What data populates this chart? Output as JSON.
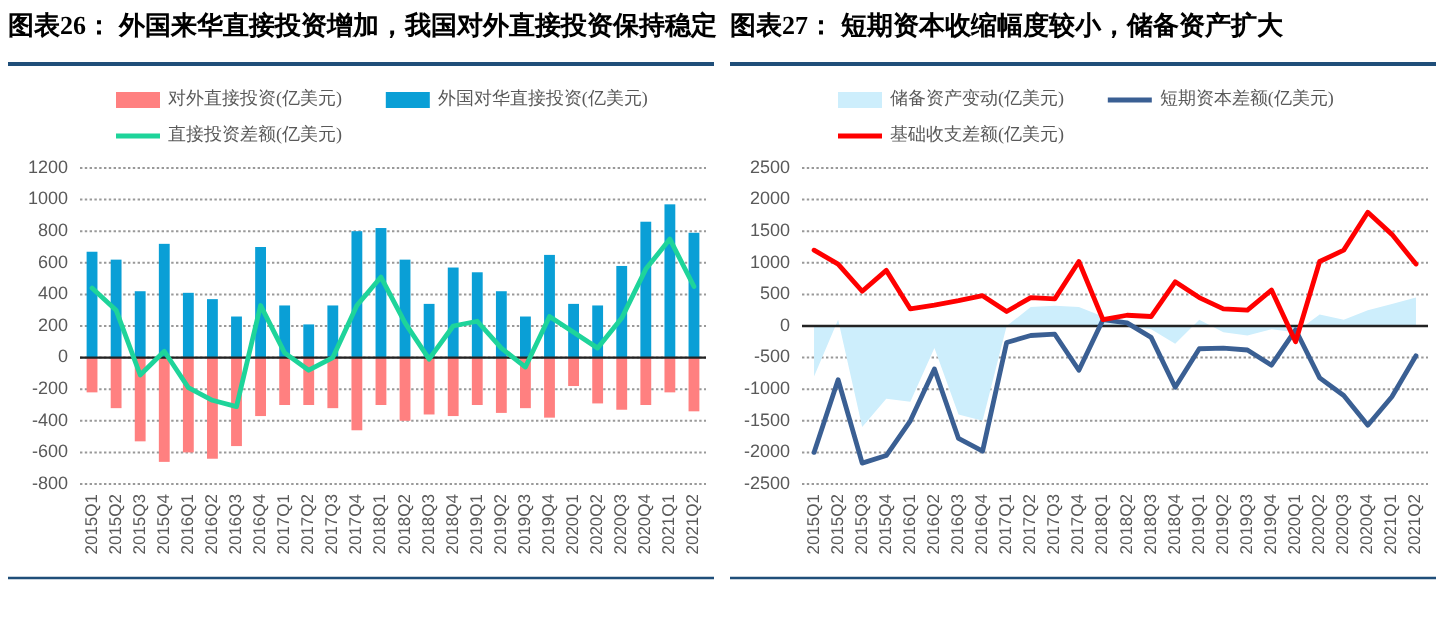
{
  "chart_data": [
    {
      "type": "bar",
      "title": "图表26： 外国来华直接投资增加，我国对外直接投资保持稳定",
      "stacked": true,
      "grid": "y",
      "legend": "top",
      "categories": [
        "2015Q1",
        "2015Q2",
        "2015Q3",
        "2015Q4",
        "2016Q1",
        "2016Q2",
        "2016Q3",
        "2016Q4",
        "2017Q1",
        "2017Q2",
        "2017Q3",
        "2017Q4",
        "2018Q1",
        "2018Q2",
        "2018Q3",
        "2018Q4",
        "2019Q1",
        "2019Q2",
        "2019Q3",
        "2019Q4",
        "2020Q1",
        "2020Q2",
        "2020Q3",
        "2020Q4",
        "2021Q1",
        "2021Q2"
      ],
      "ylim": [
        -800,
        1200
      ],
      "yticks": [
        -800,
        -600,
        -400,
        -200,
        0,
        200,
        400,
        600,
        800,
        1000,
        1200
      ],
      "series": [
        {
          "name": "对外直接投资(亿美元)",
          "color": "#ff8080",
          "values": [
            -220,
            -320,
            -530,
            -660,
            -600,
            -640,
            -560,
            -370,
            -300,
            -300,
            -320,
            -460,
            -300,
            -400,
            -360,
            -370,
            -300,
            -350,
            -320,
            -380,
            -180,
            -290,
            -330,
            -300,
            -220,
            -340
          ]
        },
        {
          "name": "外国对华直接投资(亿美元)",
          "color": "#0a9fd6",
          "values": [
            670,
            620,
            420,
            720,
            410,
            370,
            260,
            700,
            330,
            210,
            330,
            800,
            820,
            620,
            340,
            570,
            540,
            420,
            260,
            650,
            340,
            330,
            580,
            860,
            970,
            790
          ]
        },
        {
          "name": "直接投资差额(亿美元)",
          "type": "line",
          "color": "#1ed49a",
          "values": [
            440,
            300,
            -110,
            40,
            -190,
            -270,
            -310,
            330,
            30,
            -80,
            0,
            330,
            510,
            220,
            -10,
            200,
            230,
            60,
            -60,
            260,
            160,
            60,
            250,
            560,
            750,
            450
          ]
        }
      ]
    },
    {
      "type": "line",
      "title": "图表27： 短期资本收缩幅度较小，储备资产扩大",
      "grid": "y",
      "legend": "top",
      "categories": [
        "2015Q1",
        "2015Q2",
        "2015Q3",
        "2015Q4",
        "2016Q1",
        "2016Q2",
        "2016Q3",
        "2016Q4",
        "2017Q1",
        "2017Q2",
        "2017Q3",
        "2017Q4",
        "2018Q1",
        "2018Q2",
        "2018Q3",
        "2018Q4",
        "2019Q1",
        "2019Q2",
        "2019Q3",
        "2019Q4",
        "2020Q1",
        "2020Q2",
        "2020Q3",
        "2020Q4",
        "2021Q1",
        "2021Q2"
      ],
      "ylim": [
        -2500,
        2500
      ],
      "yticks": [
        -2500,
        -2000,
        -1500,
        -1000,
        -500,
        0,
        500,
        1000,
        1500,
        2000,
        2500
      ],
      "series": [
        {
          "name": "储备资产变动(亿美元)",
          "type": "area",
          "color": "#cdeefc",
          "values": [
            -800,
            100,
            -1600,
            -1150,
            -1200,
            -350,
            -1400,
            -1500,
            0,
            300,
            320,
            300,
            150,
            0,
            -50,
            -280,
            100,
            -100,
            -150,
            -50,
            -100,
            180,
            100,
            250,
            350,
            450
          ]
        },
        {
          "name": "短期资本差额(亿美元)",
          "color": "#3a5f93",
          "values": [
            -2000,
            -850,
            -2170,
            -2050,
            -1500,
            -680,
            -1780,
            -1980,
            -260,
            -150,
            -130,
            -700,
            100,
            50,
            -180,
            -970,
            -360,
            -350,
            -380,
            -620,
            -60,
            -820,
            -1100,
            -1570,
            -1120,
            -470
          ]
        },
        {
          "name": "基础收支差额(亿美元)",
          "color": "#ff0000",
          "values": [
            1200,
            980,
            550,
            880,
            270,
            330,
            400,
            480,
            230,
            450,
            430,
            1020,
            100,
            170,
            150,
            700,
            450,
            270,
            250,
            570,
            -250,
            1020,
            1200,
            1800,
            1450,
            980
          ]
        }
      ]
    }
  ]
}
